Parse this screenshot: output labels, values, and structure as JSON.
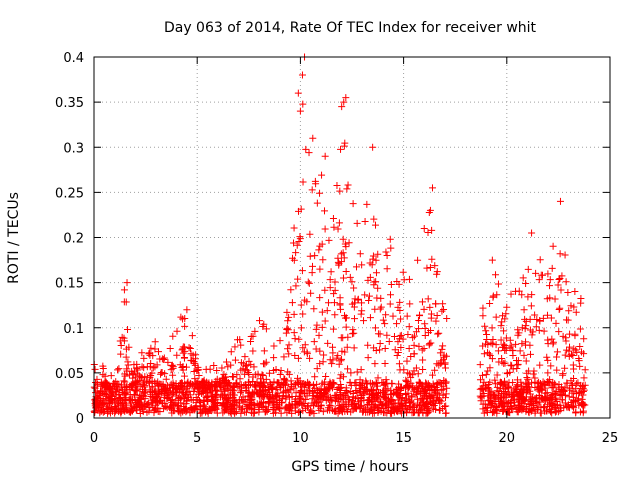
{
  "chart_data": {
    "type": "scatter",
    "title": "Day 063 of 2014, Rate Of TEC Index for receiver whit",
    "xlabel": "GPS time / hours",
    "ylabel": "ROTI / TECUs",
    "xlim": [
      0,
      25
    ],
    "ylim": [
      0,
      0.4
    ],
    "x_ticks": [
      0,
      5,
      10,
      15,
      20,
      25
    ],
    "y_ticks": [
      0,
      0.05,
      0.1,
      0.15,
      0.2,
      0.25,
      0.3,
      0.35,
      0.4
    ],
    "x_tick_labels": [
      "0",
      "5",
      "10",
      "15",
      "20",
      "25"
    ],
    "y_tick_labels": [
      "0",
      "0.05",
      "0.1",
      "0.15",
      "0.2",
      "0.25",
      "0.3",
      "0.35",
      "0.4"
    ],
    "grid": true,
    "marker": "+",
    "marker_color": "#ff0000",
    "series": [
      {
        "name": "ROTI",
        "segments": [
          {
            "x_start": 0.0,
            "x_end": 17.1,
            "envelope": [
              [
                0.0,
                0.07
              ],
              [
                0.5,
                0.06
              ],
              [
                1.0,
                0.05
              ],
              [
                1.5,
                0.15
              ],
              [
                1.8,
                0.08
              ],
              [
                2.5,
                0.07
              ],
              [
                3.0,
                0.09
              ],
              [
                3.5,
                0.07
              ],
              [
                4.0,
                0.11
              ],
              [
                4.5,
                0.13
              ],
              [
                5.0,
                0.06
              ],
              [
                5.5,
                0.07
              ],
              [
                6.0,
                0.06
              ],
              [
                6.5,
                0.07
              ],
              [
                7.0,
                0.1
              ],
              [
                7.5,
                0.09
              ],
              [
                8.0,
                0.11
              ],
              [
                8.5,
                0.1
              ],
              [
                9.0,
                0.09
              ],
              [
                9.5,
                0.13
              ],
              [
                10.0,
                0.36
              ],
              [
                10.1,
                0.4
              ],
              [
                10.5,
                0.28
              ],
              [
                11.0,
                0.29
              ],
              [
                11.5,
                0.2
              ],
              [
                12.0,
                0.35
              ],
              [
                12.5,
                0.25
              ],
              [
                13.0,
                0.22
              ],
              [
                13.5,
                0.3
              ],
              [
                14.0,
                0.17
              ],
              [
                14.5,
                0.22
              ],
              [
                14.8,
                0.15
              ],
              [
                15.2,
                0.18
              ],
              [
                15.5,
                0.16
              ],
              [
                16.0,
                0.21
              ],
              [
                16.4,
                0.25
              ],
              [
                16.8,
                0.14
              ],
              [
                17.1,
                0.12
              ]
            ]
          },
          {
            "x_start": 18.7,
            "x_end": 23.8,
            "envelope": [
              [
                18.7,
                0.12
              ],
              [
                19.0,
                0.17
              ],
              [
                19.5,
                0.16
              ],
              [
                20.0,
                0.13
              ],
              [
                20.5,
                0.15
              ],
              [
                21.0,
                0.18
              ],
              [
                21.3,
                0.2
              ],
              [
                21.6,
                0.19
              ],
              [
                22.0,
                0.16
              ],
              [
                22.5,
                0.24
              ],
              [
                23.0,
                0.15
              ],
              [
                23.5,
                0.15
              ],
              [
                23.8,
                0.1
              ]
            ]
          }
        ]
      }
    ],
    "notable_points": [
      {
        "x": 10.2,
        "y": 0.4
      },
      {
        "x": 10.1,
        "y": 0.38
      },
      {
        "x": 9.9,
        "y": 0.36
      },
      {
        "x": 12.2,
        "y": 0.355
      },
      {
        "x": 12.1,
        "y": 0.35
      },
      {
        "x": 13.5,
        "y": 0.3
      },
      {
        "x": 10.0,
        "y": 0.34
      },
      {
        "x": 10.6,
        "y": 0.31
      },
      {
        "x": 11.2,
        "y": 0.29
      },
      {
        "x": 22.6,
        "y": 0.24
      },
      {
        "x": 16.4,
        "y": 0.255
      },
      {
        "x": 16.3,
        "y": 0.23
      },
      {
        "x": 21.2,
        "y": 0.205
      },
      {
        "x": 16.0,
        "y": 0.21
      },
      {
        "x": 14.2,
        "y": 0.18
      },
      {
        "x": 1.6,
        "y": 0.15
      },
      {
        "x": 4.5,
        "y": 0.12
      },
      {
        "x": 19.3,
        "y": 0.175
      }
    ]
  }
}
